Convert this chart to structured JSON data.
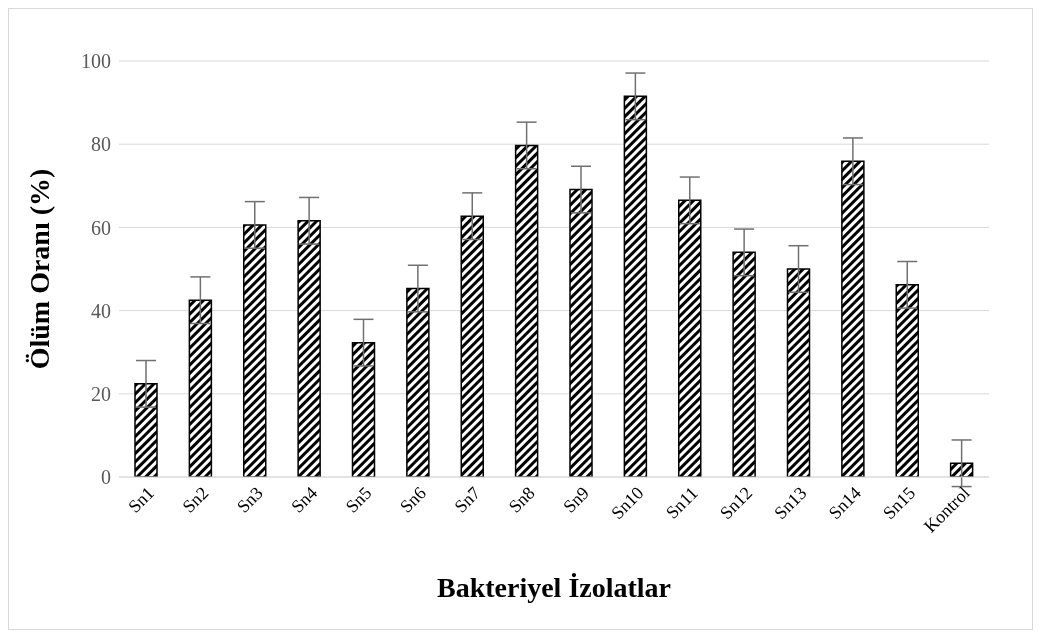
{
  "chart_data": {
    "type": "bar",
    "xlabel": "Bakteriyel İzolatlar",
    "ylabel": "Ölüm Oranı (%)",
    "categories": [
      "Sn1",
      "Sn2",
      "Sn3",
      "Sn4",
      "Sn5",
      "Sn6",
      "Sn7",
      "Sn8",
      "Sn9",
      "Sn10",
      "Sn11",
      "Sn12",
      "Sn13",
      "Sn14",
      "Sn15",
      "Kontrol"
    ],
    "values": [
      22.4,
      42.5,
      60.6,
      61.6,
      32.3,
      45.3,
      62.7,
      79.7,
      69.1,
      91.5,
      66.5,
      54,
      50,
      75.9,
      46.2,
      3.3
    ],
    "errors": [
      5.6,
      5.6,
      5.6,
      5.6,
      5.6,
      5.6,
      5.6,
      5.6,
      5.6,
      5.6,
      5.6,
      5.6,
      5.6,
      5.6,
      5.6,
      5.6
    ],
    "color": "#000000",
    "ylim": [
      0,
      100
    ],
    "yticks": [
      0,
      20,
      40,
      60,
      80,
      100
    ],
    "grid": "y"
  }
}
